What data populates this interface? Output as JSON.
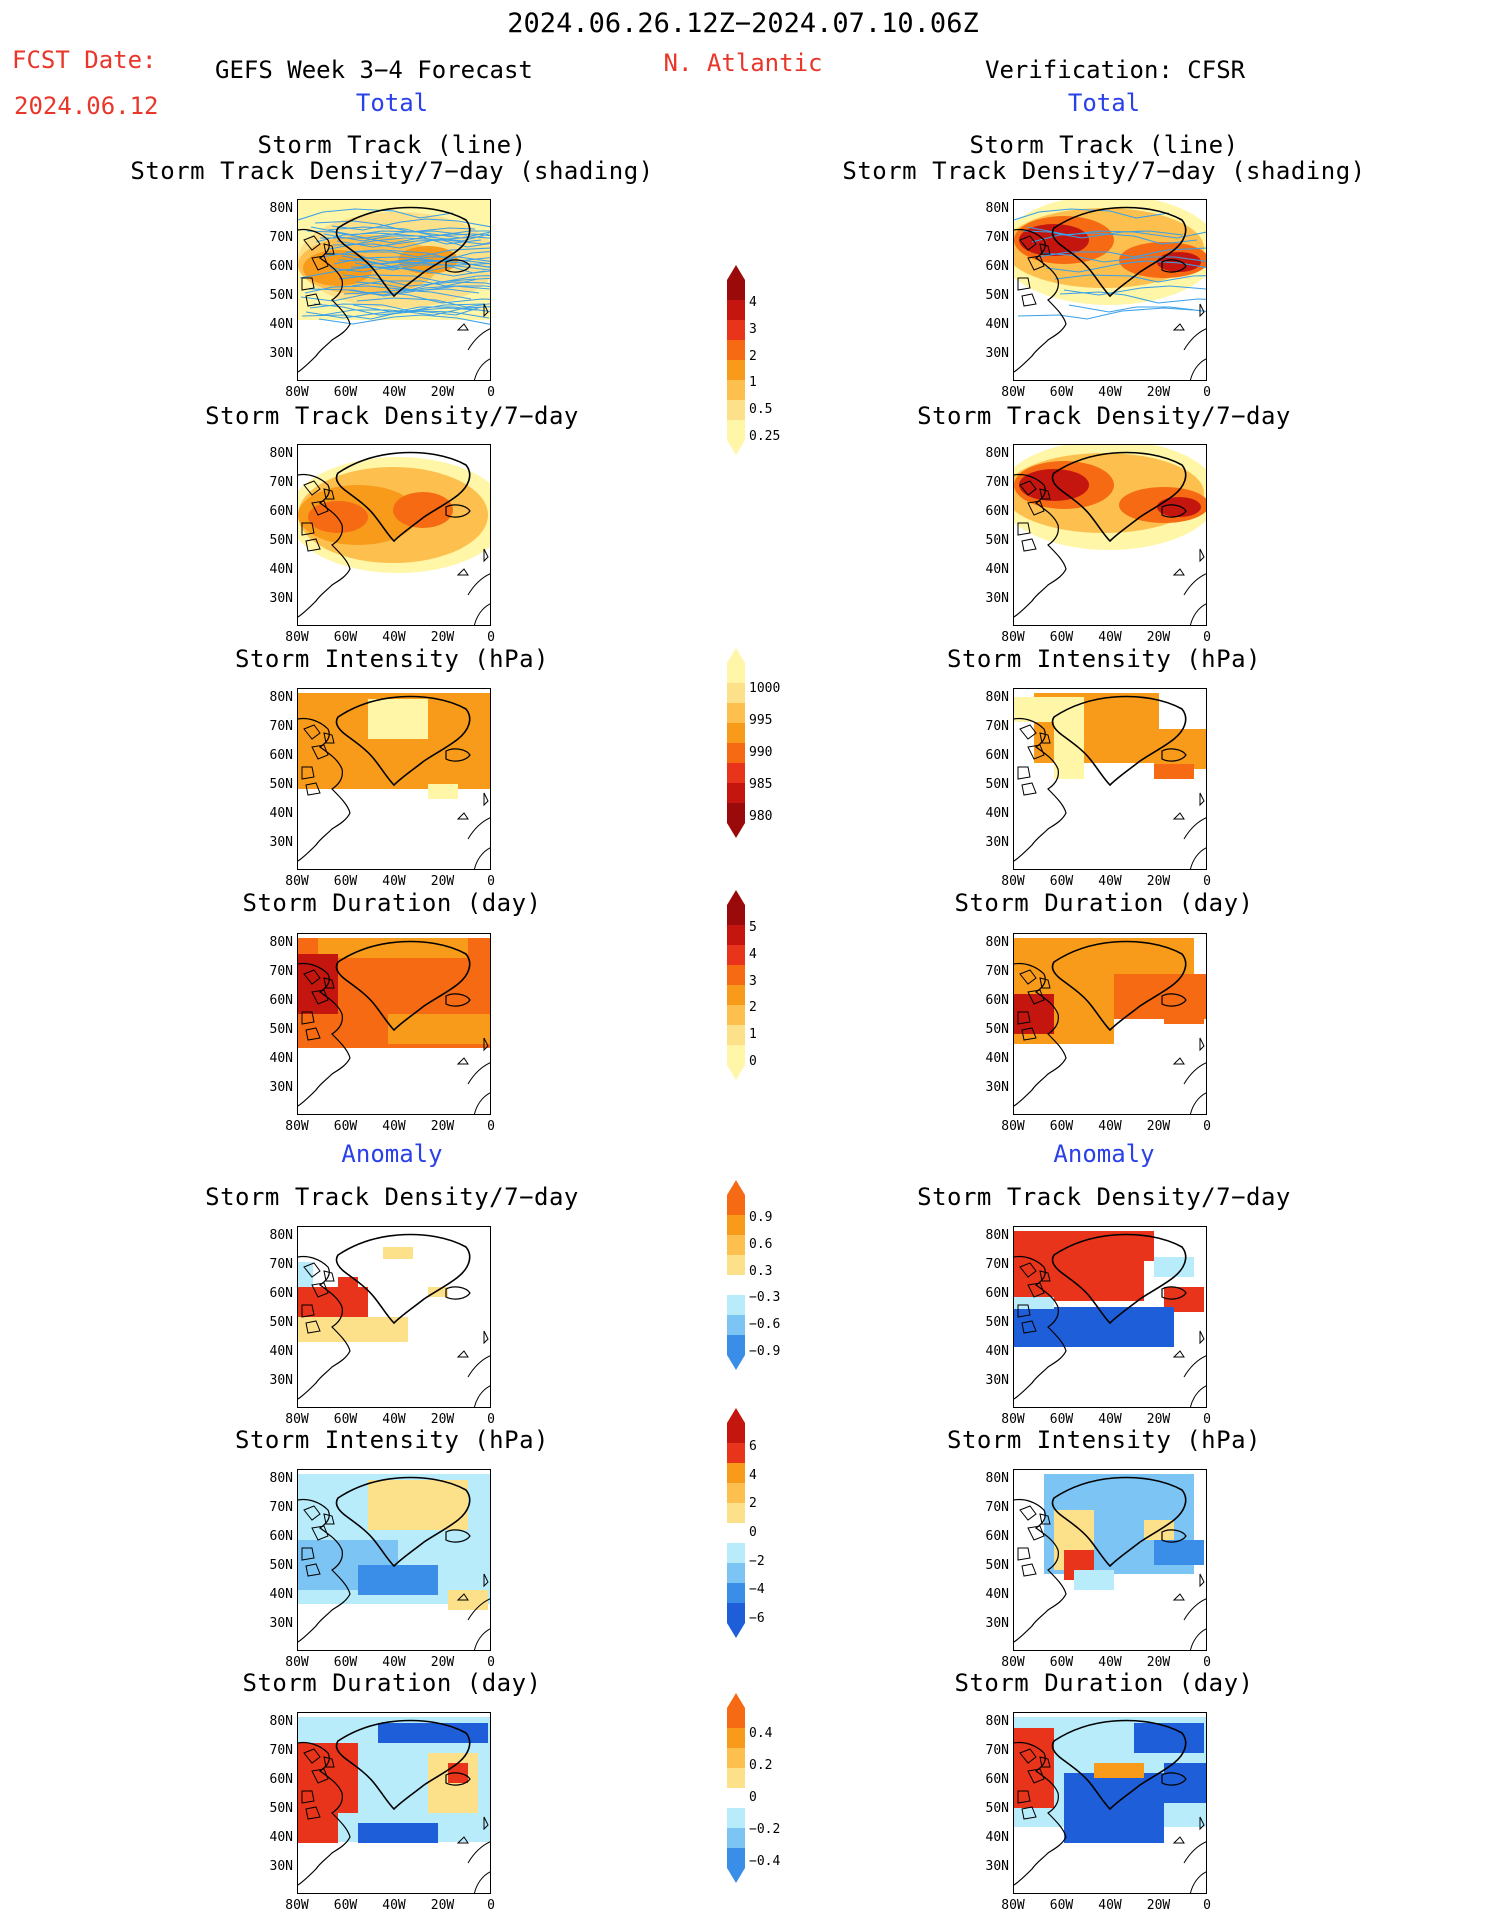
{
  "header": {
    "date_range": "2024.06.26.12Z−2024.07.10.06Z",
    "fcst_label": "FCST Date:",
    "fcst_date": "2024.06.12",
    "model_title": "GEFS Week 3−4 Forecast",
    "region": "N. Atlantic",
    "verification": "Verification: CFSR",
    "total_left": "Total",
    "total_right": "Total",
    "anomaly_left": "Anomaly",
    "anomaly_right": "Anomaly"
  },
  "panels": {
    "track_line": "Storm Track (line)",
    "track_shading": "Storm Track Density/7−day (shading)",
    "density": "Storm Track Density/7−day",
    "intensity": "Storm Intensity (hPa)",
    "duration": "Storm Duration (day)"
  },
  "axes": {
    "lat": [
      "80N",
      "70N",
      "60N",
      "50N",
      "40N",
      "30N"
    ],
    "lon": [
      "80W",
      "60W",
      "40W",
      "20W",
      "0"
    ]
  },
  "colorbars": {
    "density_total": [
      "4",
      "3",
      "2",
      "1",
      "0.5",
      "0.25"
    ],
    "intensity_total": [
      "1000",
      "995",
      "990",
      "985",
      "980"
    ],
    "duration_total": [
      "5",
      "4",
      "3",
      "2",
      "1",
      "0"
    ],
    "density_anom": [
      "0.9",
      "0.6",
      "0.3",
      "−0.3",
      "−0.6",
      "−0.9"
    ],
    "intensity_anom": [
      "6",
      "4",
      "2",
      "0",
      "−2",
      "−4",
      "−6"
    ],
    "duration_anom": [
      "0.4",
      "0.2",
      "0",
      "−0.2",
      "−0.4"
    ]
  },
  "colors": {
    "light_yellow": "#fff6a8",
    "yellow": "#fde08a",
    "light_orange": "#fdc04e",
    "orange": "#f99b1a",
    "dark_orange": "#f56a12",
    "red": "#e8341a",
    "dark_red": "#c4160e",
    "maroon": "#9b0a0a",
    "light_blue": "#b8ecfb",
    "mid_blue": "#7cc4f4",
    "blue": "#3a8ee8",
    "dark_blue": "#1e5ed8",
    "track_line": "#3aa0e8"
  }
}
